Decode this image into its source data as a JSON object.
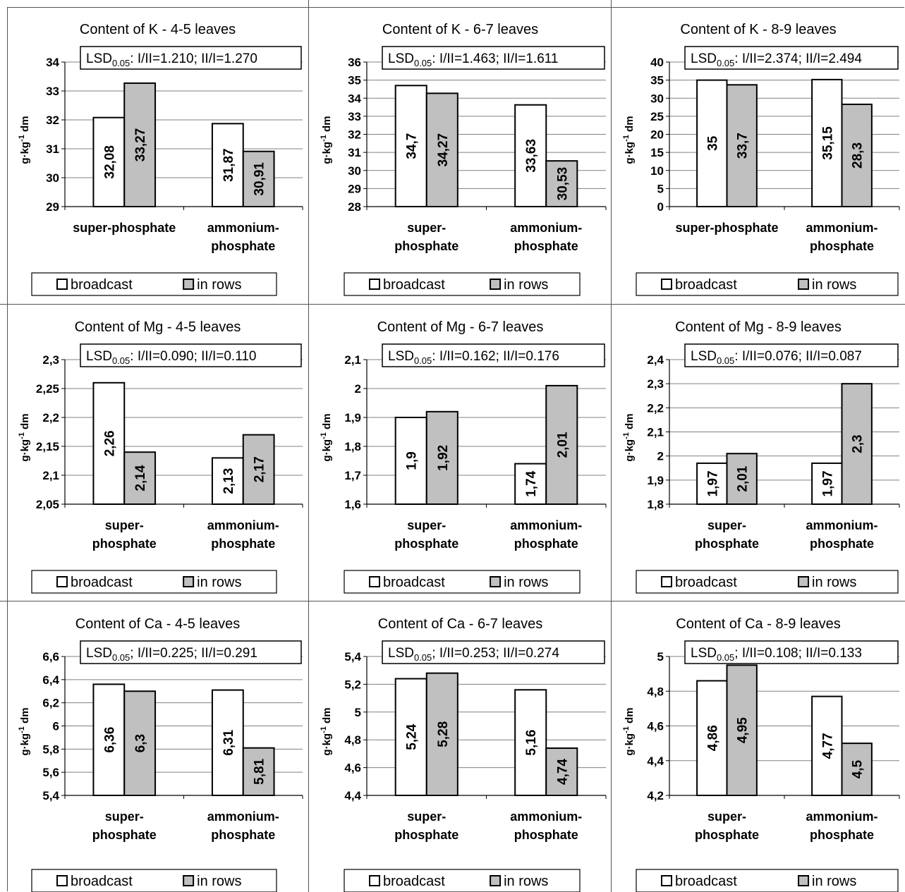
{
  "legend": {
    "broadcast": "broadcast",
    "in_rows": "in rows"
  },
  "colors": {
    "broadcast_fill": "#ffffff",
    "in_rows_fill": "#c0c0c0",
    "stroke": "#000000",
    "grid": "#808080"
  },
  "chart_data": [
    {
      "type": "bar",
      "title": "Content of K - 4-5 leaves",
      "ylabel": "g·kg-1 dm",
      "lsd": {
        "prefix": "LSD",
        "sub": "0.05",
        "text": ": I/II=1.210; II/I=1.270"
      },
      "categories": [
        [
          "super-phosphate"
        ],
        [
          "ammonium-",
          "phosphate"
        ]
      ],
      "ylim": [
        29,
        34
      ],
      "yticks": [
        "29",
        "30",
        "31",
        "32",
        "33",
        "34"
      ],
      "series": [
        {
          "name": "broadcast",
          "values": [
            32.08,
            31.87
          ],
          "labels": [
            "32,08",
            "31,87"
          ]
        },
        {
          "name": "in rows",
          "values": [
            33.27,
            30.91
          ],
          "labels": [
            "33,27",
            "30,91"
          ]
        }
      ]
    },
    {
      "type": "bar",
      "title": "Content of K - 6-7 leaves",
      "ylabel": "g·kg-1 dm",
      "lsd": {
        "prefix": "LSD",
        "sub": "0.05",
        "text": ": I/II=1.463; II/I=1.611"
      },
      "categories": [
        [
          "super-",
          "phosphate"
        ],
        [
          "ammonium-",
          "phosphate"
        ]
      ],
      "ylim": [
        28,
        36
      ],
      "yticks": [
        "28",
        "29",
        "30",
        "31",
        "32",
        "33",
        "34",
        "35",
        "36"
      ],
      "series": [
        {
          "name": "broadcast",
          "values": [
            34.7,
            33.63
          ],
          "labels": [
            "34,7",
            "33,63"
          ]
        },
        {
          "name": "in rows",
          "values": [
            34.27,
            30.53
          ],
          "labels": [
            "34,27",
            "30,53"
          ]
        }
      ]
    },
    {
      "type": "bar",
      "title": "Content of K - 8-9 leaves",
      "ylabel": "g·kg-1 dm",
      "lsd": {
        "prefix": "LSD",
        "sub": "0.05",
        "text": ": I/II=2.374; II/I=2.494"
      },
      "categories": [
        [
          "super-phosphate"
        ],
        [
          "ammonium-",
          "phosphate"
        ]
      ],
      "ylim": [
        0,
        40
      ],
      "yticks": [
        "0",
        "5",
        "10",
        "15",
        "20",
        "25",
        "30",
        "35",
        "40"
      ],
      "series": [
        {
          "name": "broadcast",
          "values": [
            35,
            35.15
          ],
          "labels": [
            "35",
            "35,15"
          ]
        },
        {
          "name": "in rows",
          "values": [
            33.7,
            28.3
          ],
          "labels": [
            "33,7",
            "28,3"
          ]
        }
      ]
    },
    {
      "type": "bar",
      "title": "Content of Mg - 4-5 leaves",
      "ylabel": "g·kg-1 dm",
      "lsd": {
        "prefix": "LSD",
        "sub": "0.05",
        "text": ": I/II=0.090; II/I=0.110"
      },
      "categories": [
        [
          "super-",
          "phosphate"
        ],
        [
          "ammonium-",
          "phosphate"
        ]
      ],
      "ylim": [
        2.05,
        2.3
      ],
      "yticks": [
        "2,05",
        "2,1",
        "2,15",
        "2,2",
        "2,25",
        "2,3"
      ],
      "series": [
        {
          "name": "broadcast",
          "values": [
            2.26,
            2.13
          ],
          "labels": [
            "2,26",
            "2,13"
          ]
        },
        {
          "name": "in rows",
          "values": [
            2.14,
            2.17
          ],
          "labels": [
            "2,14",
            "2,17"
          ]
        }
      ]
    },
    {
      "type": "bar",
      "title": "Content of Mg - 6-7 leaves",
      "ylabel": "g·kg-1 dm",
      "lsd": {
        "prefix": "LSD",
        "sub": "0.05",
        "text": ": I/II=0.162; II/I=0.176"
      },
      "categories": [
        [
          "super-",
          "phosphate"
        ],
        [
          "ammonium-",
          "phosphate"
        ]
      ],
      "ylim": [
        1.6,
        2.1
      ],
      "yticks": [
        "1,6",
        "1,7",
        "1,8",
        "1,9",
        "2",
        "2,1"
      ],
      "series": [
        {
          "name": "broadcast",
          "values": [
            1.9,
            1.74
          ],
          "labels": [
            "1,9",
            "1,74"
          ]
        },
        {
          "name": "in rows",
          "values": [
            1.92,
            2.01
          ],
          "labels": [
            "1,92",
            "2,01"
          ]
        }
      ]
    },
    {
      "type": "bar",
      "title": "Content of Mg - 8-9 leaves",
      "ylabel": "g·kg-1 dm",
      "lsd": {
        "prefix": "LSD",
        "sub": "0.05",
        "text": ": I/II=0.076; II/I=0.087"
      },
      "categories": [
        [
          "super-",
          "phosphate"
        ],
        [
          "ammonium-",
          "phosphate"
        ]
      ],
      "ylim": [
        1.8,
        2.4
      ],
      "yticks": [
        "1,8",
        "1,9",
        "2",
        "2,1",
        "2,2",
        "2,3",
        "2,4"
      ],
      "series": [
        {
          "name": "broadcast",
          "values": [
            1.97,
            1.97
          ],
          "labels": [
            "1,97",
            "1,97"
          ]
        },
        {
          "name": "in rows",
          "values": [
            2.01,
            2.3
          ],
          "labels": [
            "2,01",
            "2,3"
          ]
        }
      ]
    },
    {
      "type": "bar",
      "title": "Content of Ca - 4-5 leaves",
      "ylabel": "g·kg-1 dm",
      "lsd": {
        "prefix": "LSD",
        "sub": "0.05",
        "text": "; I/II=0.225; II/I=0.291"
      },
      "categories": [
        [
          "super-",
          "phosphate"
        ],
        [
          "ammonium-",
          "phosphate"
        ]
      ],
      "ylim": [
        5.4,
        6.6
      ],
      "yticks": [
        "5,4",
        "5,6",
        "5,8",
        "6",
        "6,2",
        "6,4",
        "6,6"
      ],
      "series": [
        {
          "name": "broadcast",
          "values": [
            6.36,
            6.31
          ],
          "labels": [
            "6,36",
            "6,31"
          ]
        },
        {
          "name": "in rows",
          "values": [
            6.3,
            5.81
          ],
          "labels": [
            "6,3",
            "5,81"
          ]
        }
      ]
    },
    {
      "type": "bar",
      "title": "Content of Ca - 6-7 leaves",
      "ylabel": "g·kg-1 dm",
      "lsd": {
        "prefix": "LSD",
        "sub": "0.05",
        "text": "; I/II=0.253; II/I=0.274"
      },
      "categories": [
        [
          "super-",
          "phosphate"
        ],
        [
          "ammonium-",
          "phosphate"
        ]
      ],
      "ylim": [
        4.4,
        5.4
      ],
      "yticks": [
        "4,4",
        "4,6",
        "4,8",
        "5",
        "5,2",
        "5,4"
      ],
      "series": [
        {
          "name": "broadcast",
          "values": [
            5.24,
            5.16
          ],
          "labels": [
            "5,24",
            "5,16"
          ]
        },
        {
          "name": "in rows",
          "values": [
            5.28,
            4.74
          ],
          "labels": [
            "5,28",
            "4,74"
          ]
        }
      ]
    },
    {
      "type": "bar",
      "title": "Content of Ca - 8-9 leaves",
      "ylabel": "g·kg-1 dm",
      "lsd": {
        "prefix": "LSD",
        "sub": "0.05",
        "text": "; I/II=0.108; II/I=0.133"
      },
      "categories": [
        [
          "super-",
          "phosphate"
        ],
        [
          "ammonium-",
          "phosphate"
        ]
      ],
      "ylim": [
        4.2,
        5
      ],
      "yticks": [
        "4,2",
        "4,4",
        "4,6",
        "4,8",
        "5"
      ],
      "series": [
        {
          "name": "broadcast",
          "values": [
            4.86,
            4.77
          ],
          "labels": [
            "4,86",
            "4,77"
          ]
        },
        {
          "name": "in rows",
          "values": [
            4.95,
            4.5
          ],
          "labels": [
            "4,95",
            "4,5"
          ]
        }
      ]
    }
  ]
}
